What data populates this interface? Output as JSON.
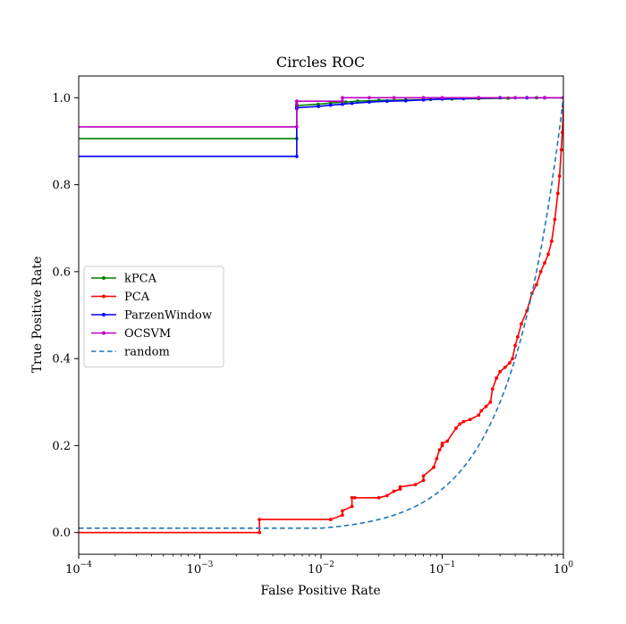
{
  "chart_data": {
    "type": "line",
    "title": "Circles ROC",
    "xlabel": "False Positive Rate",
    "ylabel": "True Positive Rate",
    "xscale": "log",
    "xlim": [
      0.0001,
      1
    ],
    "ylim": [
      -0.05,
      1.05
    ],
    "xticks": [
      {
        "value": 0.0001,
        "base": "10",
        "exp": "−4"
      },
      {
        "value": 0.001,
        "base": "10",
        "exp": "−3"
      },
      {
        "value": 0.01,
        "base": "10",
        "exp": "−2"
      },
      {
        "value": 0.1,
        "base": "10",
        "exp": "−1"
      },
      {
        "value": 1,
        "base": "10",
        "exp": "0"
      }
    ],
    "yticks": [
      {
        "value": 0.0,
        "label": "0.0"
      },
      {
        "value": 0.2,
        "label": "0.2"
      },
      {
        "value": 0.4,
        "label": "0.4"
      },
      {
        "value": 0.6,
        "label": "0.6"
      },
      {
        "value": 0.8,
        "label": "0.8"
      },
      {
        "value": 1.0,
        "label": "1.0"
      }
    ],
    "grid": false,
    "legend_position": "center-left",
    "series": [
      {
        "name": "kPCA",
        "color": "#008000",
        "style": "solid-markers",
        "x": [
          0.0001,
          0.0063,
          0.0063,
          0.0063,
          0.0095,
          0.012,
          0.016,
          0.02,
          0.03,
          0.05,
          0.08,
          0.12,
          0.2,
          0.35,
          0.6,
          1.0
        ],
        "y": [
          0.906,
          0.906,
          0.98,
          0.982,
          0.985,
          0.988,
          0.99,
          0.992,
          0.994,
          0.995,
          0.996,
          0.997,
          0.998,
          0.999,
          1.0,
          1.0
        ]
      },
      {
        "name": "PCA",
        "color": "#ff0000",
        "style": "solid-markers",
        "x": [
          0.0001,
          0.0031,
          0.0031,
          0.012,
          0.015,
          0.015,
          0.018,
          0.018,
          0.019,
          0.03,
          0.035,
          0.04,
          0.045,
          0.045,
          0.06,
          0.07,
          0.07,
          0.085,
          0.09,
          0.095,
          0.1,
          0.1,
          0.11,
          0.13,
          0.14,
          0.15,
          0.17,
          0.2,
          0.21,
          0.23,
          0.25,
          0.26,
          0.28,
          0.3,
          0.33,
          0.36,
          0.38,
          0.4,
          0.42,
          0.45,
          0.5,
          0.55,
          0.6,
          0.65,
          0.7,
          0.75,
          0.8,
          0.85,
          0.9,
          0.93,
          0.96,
          0.98,
          1.0
        ],
        "y": [
          0.0,
          0.0,
          0.03,
          0.03,
          0.04,
          0.05,
          0.06,
          0.08,
          0.08,
          0.08,
          0.085,
          0.095,
          0.1,
          0.105,
          0.11,
          0.12,
          0.13,
          0.15,
          0.17,
          0.19,
          0.2,
          0.205,
          0.21,
          0.24,
          0.25,
          0.255,
          0.26,
          0.27,
          0.28,
          0.29,
          0.3,
          0.33,
          0.355,
          0.37,
          0.38,
          0.39,
          0.4,
          0.43,
          0.45,
          0.48,
          0.51,
          0.55,
          0.57,
          0.6,
          0.62,
          0.64,
          0.67,
          0.72,
          0.78,
          0.82,
          0.88,
          0.92,
          0.98
        ]
      },
      {
        "name": "ParzenWindow",
        "color": "#0000ff",
        "style": "solid-markers",
        "x": [
          0.0001,
          0.0063,
          0.0063,
          0.0063,
          0.0095,
          0.012,
          0.015,
          0.018,
          0.025,
          0.035,
          0.05,
          0.07,
          0.1,
          0.15,
          0.2,
          0.3,
          0.5,
          0.7,
          1.0
        ],
        "y": [
          0.865,
          0.865,
          0.975,
          0.977,
          0.98,
          0.983,
          0.985,
          0.987,
          0.99,
          0.992,
          0.993,
          0.995,
          0.997,
          0.998,
          0.999,
          1.0,
          1.0,
          1.0,
          1.0
        ]
      },
      {
        "name": "OCSVM",
        "color": "#bf00bf",
        "style": "solid-markers",
        "x": [
          0.0001,
          0.0063,
          0.0063,
          0.0063,
          0.015,
          0.015,
          0.025,
          0.04,
          0.07,
          0.1,
          0.2,
          0.4,
          0.7,
          1.0
        ],
        "y": [
          0.933,
          0.933,
          0.985,
          0.992,
          0.992,
          1.0,
          1.0,
          1.0,
          1.0,
          1.0,
          1.0,
          1.0,
          1.0,
          1.0
        ]
      },
      {
        "name": "random",
        "color": "#1f77b4",
        "style": "dashed",
        "function": "y = max(x, 0.01)"
      }
    ]
  }
}
